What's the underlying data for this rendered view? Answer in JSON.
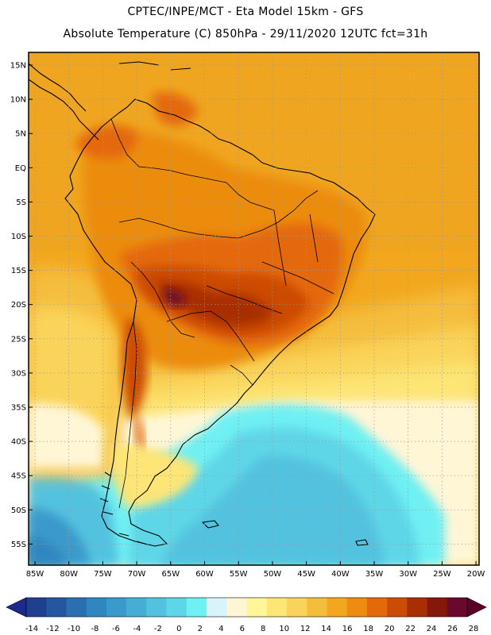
{
  "header": {
    "line1": "CPTEC/INPE/MCT -  Eta Model 15km - GFS",
    "line2": "Absolute Temperature (C) 850hPa - 29/11/2020 12UTC fct=31h"
  },
  "map": {
    "variable": "Absolute Temperature",
    "units": "C",
    "level": "850hPa",
    "lat_ticks": [
      "15N",
      "10N",
      "5N",
      "EQ",
      "5S",
      "10S",
      "15S",
      "20S",
      "25S",
      "30S",
      "35S",
      "40S",
      "45S",
      "50S",
      "55S"
    ],
    "lon_ticks": [
      "85W",
      "80W",
      "75W",
      "70W",
      "65W",
      "60W",
      "55W",
      "50W",
      "45W",
      "40W",
      "35W",
      "30W",
      "25W",
      "20W"
    ]
  },
  "colorbar": {
    "labels": [
      "-14",
      "-12",
      "-10",
      "-8",
      "-6",
      "-4",
      "-2",
      "0",
      "2",
      "4",
      "6",
      "8",
      "10",
      "12",
      "14",
      "16",
      "18",
      "20",
      "22",
      "24",
      "26",
      "28"
    ],
    "colors": [
      "#1f3f8f",
      "#24579f",
      "#2a6fb0",
      "#3086bf",
      "#3a9acb",
      "#46aed6",
      "#52c2df",
      "#5fd6e8",
      "#6ff0f3",
      "#d7f4fa",
      "#fff6d6",
      "#fff69a",
      "#fde576",
      "#fad45a",
      "#f5bd3c",
      "#f2a71e",
      "#ec8c10",
      "#e4690a",
      "#cc4b05",
      "#a82e04",
      "#85180a",
      "#6a0a2a"
    ],
    "over_color": "#5c0025",
    "under_color": "#1c2a8f"
  }
}
